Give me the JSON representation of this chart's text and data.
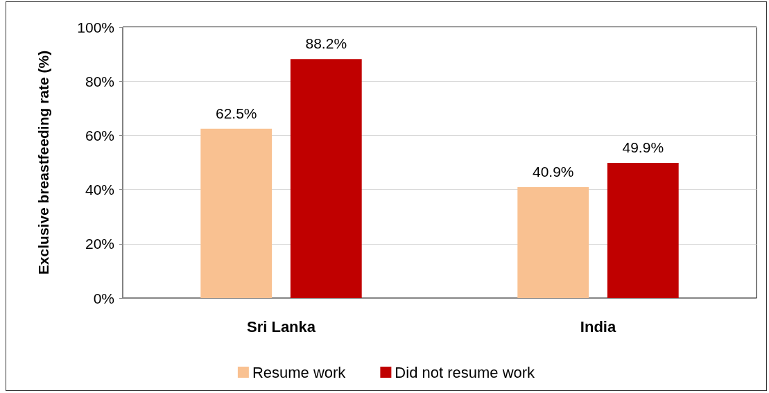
{
  "chart_data": {
    "type": "bar",
    "ylabel": "Exclusive breastfeeding rate (%)",
    "categories": [
      "Sri Lanka",
      "India"
    ],
    "series": [
      {
        "name": "Resume work",
        "color": "#f9c191",
        "values": [
          62.5,
          40.9
        ],
        "value_labels": [
          "62.5%",
          "40.9%"
        ]
      },
      {
        "name": "Did not resume work",
        "color": "#c00000",
        "values": [
          88.2,
          49.9
        ],
        "value_labels": [
          "88.2%",
          "49.9%"
        ]
      }
    ],
    "ylim": [
      0,
      100
    ],
    "yticks": [
      {
        "value": 0,
        "label": "0%"
      },
      {
        "value": 20,
        "label": "20%"
      },
      {
        "value": 40,
        "label": "40%"
      },
      {
        "value": 60,
        "label": "60%"
      },
      {
        "value": 80,
        "label": "80%"
      },
      {
        "value": 100,
        "label": "100%"
      }
    ],
    "grid": "y",
    "legend": "bottom"
  }
}
